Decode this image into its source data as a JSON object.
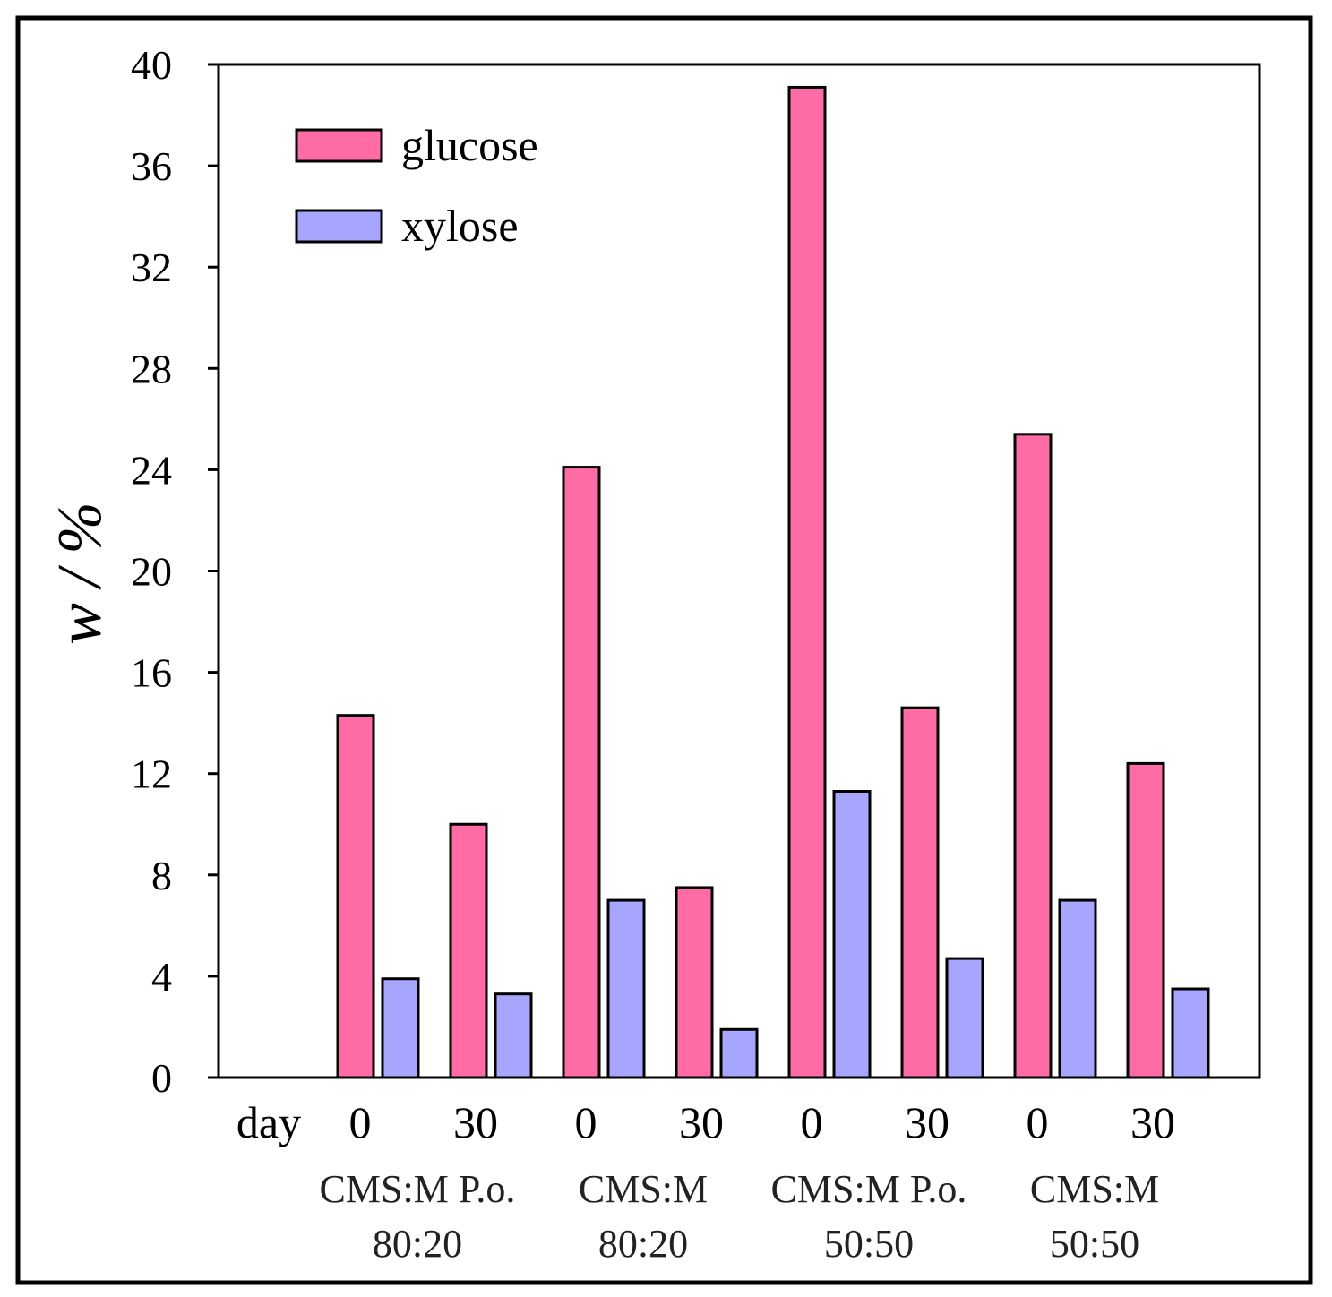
{
  "chart_data": {
    "type": "bar",
    "ylabel": "w / %",
    "ylim": [
      0,
      40
    ],
    "yticks": [
      0,
      4,
      8,
      12,
      16,
      20,
      24,
      28,
      32,
      36,
      40
    ],
    "x_row_label": "day",
    "categories": [
      "0",
      "30",
      "0",
      "30",
      "0",
      "30",
      "0",
      "30"
    ],
    "groups": [
      {
        "line1": "CMS:M P.o.",
        "line2": "80:20"
      },
      {
        "line1": "CMS:M",
        "line2": "80:20"
      },
      {
        "line1": "CMS:M P.o.",
        "line2": "50:50"
      },
      {
        "line1": "CMS:M",
        "line2": "50:50"
      }
    ],
    "series": [
      {
        "name": "glucose",
        "color": "#ff6ba5",
        "values": [
          14.3,
          10.0,
          24.1,
          7.5,
          39.1,
          14.6,
          25.4,
          12.4
        ]
      },
      {
        "name": "xylose",
        "color": "#a6a6ff",
        "values": [
          3.9,
          3.3,
          7.0,
          1.9,
          11.3,
          4.7,
          7.0,
          3.5
        ]
      }
    ],
    "legend_position": "top-left",
    "grid": false
  }
}
